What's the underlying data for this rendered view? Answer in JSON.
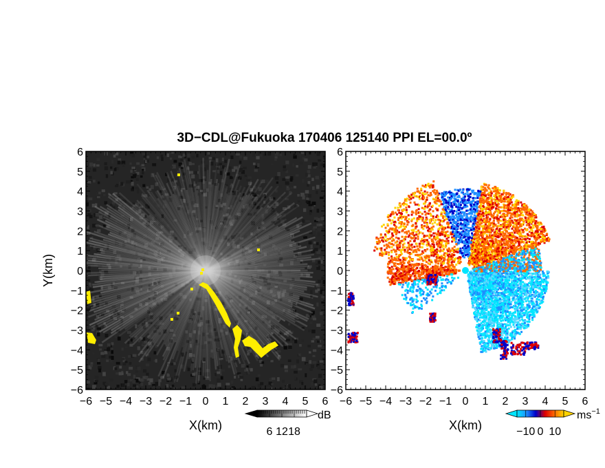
{
  "title": "3D−CDL@Fukuoka 170406 125140 PPI EL=00.0º",
  "chart_data": [
    {
      "type": "heatmap",
      "quantity": "reflectivity",
      "xlabel": "X(km)",
      "ylabel": "Y(km)",
      "xlim": [
        -6,
        6
      ],
      "ylim": [
        -6,
        6
      ],
      "xticks": [
        "−6",
        "−5",
        "−4",
        "−3",
        "−2",
        "−1",
        "0",
        "1",
        "2",
        "3",
        "4",
        "5",
        "6"
      ],
      "yticks": [
        "6",
        "5",
        "4",
        "3",
        "2",
        "1",
        "0",
        "−1",
        "−2",
        "−3",
        "−4",
        "−5",
        "−6"
      ],
      "colorbar": {
        "unit": "dB",
        "ticks": [
          6,
          12,
          18
        ],
        "tick_labels": [
          "6",
          "12",
          "18"
        ],
        "range": [
          0,
          24
        ],
        "colors": [
          "#000000",
          "#ffffff"
        ]
      },
      "highlight_color": "#ffee00"
    },
    {
      "type": "heatmap",
      "quantity": "radial velocity",
      "xlabel": "X(km)",
      "xlim": [
        -6,
        6
      ],
      "ylim": [
        -6,
        6
      ],
      "xticks": [
        "−6",
        "−5",
        "−4",
        "−3",
        "−2",
        "−1",
        "0",
        "1",
        "2",
        "3",
        "4",
        "5",
        "6"
      ],
      "yticks": [
        "6",
        "5",
        "4",
        "3",
        "2",
        "1",
        "0",
        "−1",
        "−2",
        "−3",
        "−4",
        "−5",
        "−6"
      ],
      "colorbar": {
        "unit": "ms",
        "unit_exponent": "−1",
        "ticks": [
          -10,
          0,
          10
        ],
        "tick_labels": [
          "−10",
          "0",
          "10"
        ],
        "range": [
          -16,
          16
        ],
        "colors": [
          "#00e5ff",
          "#1e90ff",
          "#0000c8",
          "#dd0000",
          "#ff6a00",
          "#ffd400"
        ]
      }
    }
  ]
}
